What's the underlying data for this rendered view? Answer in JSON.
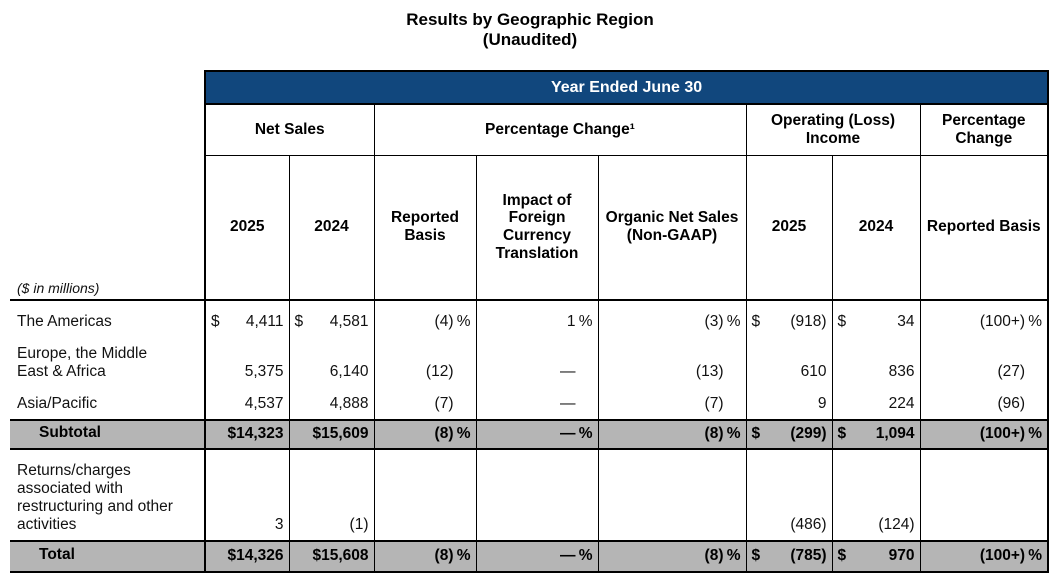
{
  "title": {
    "line1": "Results by Geographic Region",
    "line2": "(Unaudited)"
  },
  "banner": "Year Ended June 30",
  "groups": [
    {
      "label": "Net Sales"
    },
    {
      "label": "Percentage Change¹"
    },
    {
      "label": "Operating (Loss) Income"
    },
    {
      "label": "Percentage Change"
    }
  ],
  "subheaders": [
    "2025",
    "2024",
    "Reported Basis",
    "Impact of Foreign Currency Translation",
    "Organic Net Sales (Non-GAAP)",
    "2025",
    "2024",
    "Reported Basis"
  ],
  "millions_note": "($ in millions)",
  "column_keys": [
    "net-sales-2025",
    "net-sales-2024",
    "pct-reported-basis",
    "pct-fx-translation",
    "pct-organic-net-sales",
    "oi-2025",
    "oi-2024",
    "oi-pct-reported-basis"
  ],
  "colors": {
    "banner_navy": "#11477d",
    "band_gray": "#b5b5b5",
    "border": "#000000"
  },
  "rows": [
    {
      "label": "The Americas",
      "cells": [
        {
          "d": "$",
          "v": "4,411"
        },
        {
          "d": "$",
          "v": "4,581"
        },
        {
          "v": "(4)",
          "s": "%"
        },
        {
          "v": "1",
          "s": "%"
        },
        {
          "v": "(3)",
          "s": "%"
        },
        {
          "d": "$",
          "v": "(918)"
        },
        {
          "d": "$",
          "v": "34"
        },
        {
          "v": "(100+)",
          "s": "%"
        }
      ]
    },
    {
      "label": "Europe, the Middle East & Africa",
      "cells": [
        {
          "v": "5,375"
        },
        {
          "v": "6,140"
        },
        {
          "v": "(12)",
          "s": ""
        },
        {
          "v": "—",
          "s": ""
        },
        {
          "v": "(13)",
          "s": ""
        },
        {
          "v": "610"
        },
        {
          "v": "836"
        },
        {
          "v": "(27)",
          "s": ""
        }
      ]
    },
    {
      "label": "Asia/Pacific",
      "thick_bottom": true,
      "cells": [
        {
          "v": "4,537"
        },
        {
          "v": "4,888"
        },
        {
          "v": "(7)",
          "s": ""
        },
        {
          "v": "—",
          "s": ""
        },
        {
          "v": "(7)",
          "s": ""
        },
        {
          "v": "9"
        },
        {
          "v": "224"
        },
        {
          "v": "(96)",
          "s": ""
        }
      ]
    },
    {
      "label": "Subtotal",
      "gray": true,
      "bold": true,
      "indent": true,
      "thick_bottom": true,
      "cells": [
        {
          "v": "$14,323"
        },
        {
          "v": "$15,609"
        },
        {
          "v": "(8)",
          "s": "%"
        },
        {
          "v": "—",
          "s": "%"
        },
        {
          "v": "(8)",
          "s": "%"
        },
        {
          "d": "$",
          "v": "(299)"
        },
        {
          "d": "$",
          "v": "1,094"
        },
        {
          "v": "(100+)",
          "s": "%"
        }
      ]
    },
    {
      "label": "Returns/charges associated with restructuring and other activities",
      "thick_bottom": true,
      "cells": [
        {
          "v": "3"
        },
        {
          "v": "(1)"
        },
        {
          "v": "",
          "s": ""
        },
        {
          "v": "",
          "s": ""
        },
        {
          "v": "",
          "s": ""
        },
        {
          "v": "(486)"
        },
        {
          "v": "(124)"
        },
        {
          "v": "",
          "s": ""
        }
      ]
    },
    {
      "label": "Total",
      "gray": true,
      "bold": true,
      "indent": true,
      "thick_bottom": true,
      "cells": [
        {
          "v": "$14,326"
        },
        {
          "v": "$15,608"
        },
        {
          "v": "(8)",
          "s": "%"
        },
        {
          "v": "—",
          "s": "%"
        },
        {
          "v": "(8)",
          "s": "%"
        },
        {
          "d": "$",
          "v": "(785)"
        },
        {
          "d": "$",
          "v": "970"
        },
        {
          "v": "(100+)",
          "s": "%"
        }
      ]
    }
  ]
}
